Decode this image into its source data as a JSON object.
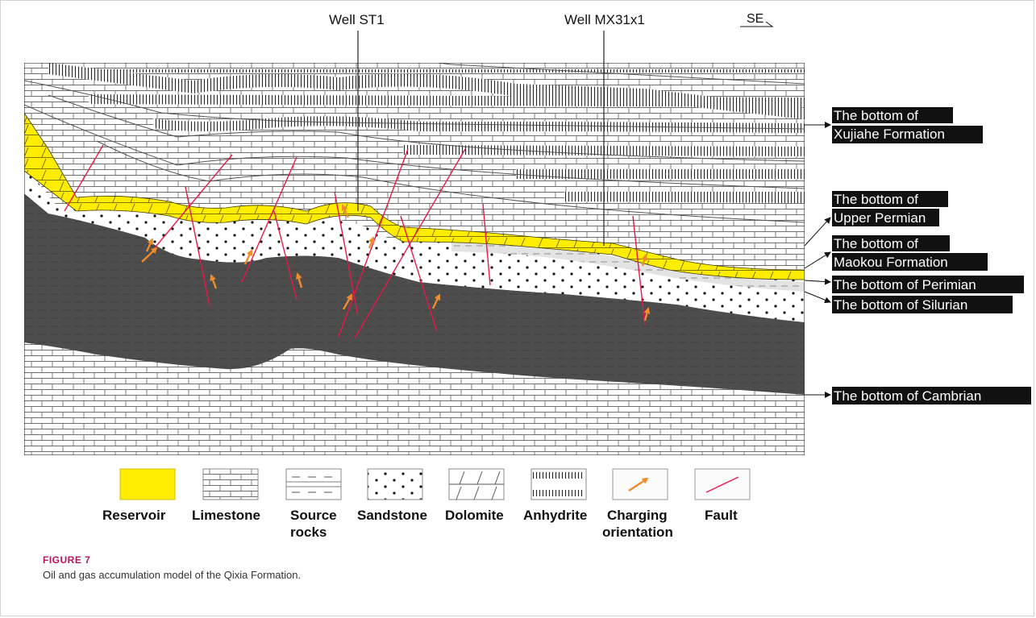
{
  "figure": {
    "wells": [
      {
        "name": "Well ST1"
      },
      {
        "name": "Well MX31x1"
      }
    ],
    "direction": "SE",
    "horizons": [
      {
        "lines": [
          "The bottom of",
          "Xujiahe Formation"
        ]
      },
      {
        "lines": [
          "The bottom of",
          "Upper Permian"
        ]
      },
      {
        "lines": [
          "The bottom of",
          "Maokou Formation"
        ]
      },
      {
        "lines": [
          "The bottom of Perimian"
        ]
      },
      {
        "lines": [
          "The bottom of Silurian"
        ]
      },
      {
        "lines": [
          "The bottom of Cambrian"
        ]
      }
    ],
    "legend": [
      {
        "key": "reservoir",
        "lines": [
          "Reservoir"
        ]
      },
      {
        "key": "limestone",
        "lines": [
          "Limestone"
        ]
      },
      {
        "key": "source_rocks",
        "lines": [
          "Source",
          "rocks"
        ]
      },
      {
        "key": "sandstone",
        "lines": [
          "Sandstone"
        ]
      },
      {
        "key": "dolomite",
        "lines": [
          "Dolomite"
        ]
      },
      {
        "key": "anhydrite",
        "lines": [
          "Anhydrite"
        ]
      },
      {
        "key": "charging",
        "lines": [
          "Charging",
          "orientation"
        ]
      },
      {
        "key": "fault",
        "lines": [
          "Fault"
        ]
      }
    ],
    "colors": {
      "reservoir": "#ffed00",
      "source_rocks": "#4d4d4d",
      "sandstone": "#ffffff",
      "silurian_band": "#e3e3e3",
      "fault": "#e8174a",
      "charging_arrow": "#f28c28"
    }
  },
  "caption": {
    "label": "FIGURE 7",
    "text": "Oil and gas accumulation model of the Qixia Formation."
  }
}
